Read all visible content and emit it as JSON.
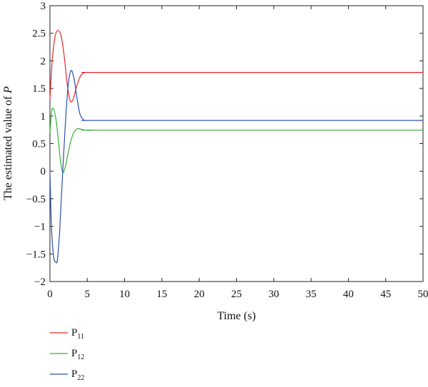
{
  "chart_data": {
    "type": "line",
    "title": "",
    "xlabel": "Time (s)",
    "ylabel_prefix": "The estimated value of ",
    "ylabel_var": "P",
    "xlim": [
      0,
      50
    ],
    "ylim": [
      -2,
      3
    ],
    "xticks": [
      0,
      5,
      10,
      15,
      20,
      25,
      30,
      35,
      40,
      45,
      50
    ],
    "yticks": [
      -2,
      -1.5,
      -1,
      -0.5,
      0,
      0.5,
      1,
      1.5,
      2,
      2.5,
      3
    ],
    "xtick_labels": [
      "0",
      "5",
      "10",
      "15",
      "20",
      "25",
      "30",
      "35",
      "40",
      "45",
      "50"
    ],
    "ytick_labels": [
      "−2",
      "−1.5",
      "−1",
      "−0.5",
      "0",
      "0.5",
      "1",
      "1.5",
      "2",
      "2.5",
      "3"
    ],
    "grid": false,
    "legend_position": "bottom-left",
    "series": [
      {
        "name": "P",
        "name_sub": "11",
        "color": "#e8262a",
        "x": [
          0,
          0.3,
          0.7,
          1.1,
          1.5,
          1.9,
          2.3,
          2.7,
          3.1,
          3.5,
          4.0,
          4.5,
          5,
          6,
          8,
          50
        ],
        "y": [
          1.3,
          2.0,
          2.45,
          2.55,
          2.45,
          2.1,
          1.6,
          1.28,
          1.3,
          1.5,
          1.7,
          1.78,
          1.79,
          1.79,
          1.79,
          1.79
        ]
      },
      {
        "name": "P",
        "name_sub": "12",
        "color": "#35b135",
        "x": [
          0,
          0.25,
          0.5,
          0.8,
          1.1,
          1.4,
          1.7,
          2.0,
          2.4,
          2.8,
          3.2,
          3.7,
          4.2,
          5,
          6,
          8,
          50
        ],
        "y": [
          0.7,
          1.1,
          1.12,
          0.95,
          0.6,
          0.2,
          -0.02,
          0.05,
          0.3,
          0.55,
          0.7,
          0.77,
          0.76,
          0.74,
          0.745,
          0.745,
          0.745
        ]
      },
      {
        "name": "P",
        "name_sub": "22",
        "color": "#2d4fb0",
        "x": [
          0,
          0.2,
          0.5,
          0.8,
          1.0,
          1.3,
          1.6,
          2.0,
          2.4,
          2.8,
          3.2,
          3.6,
          4.0,
          4.5,
          5,
          6,
          8,
          50
        ],
        "y": [
          0.0,
          -1.0,
          -1.55,
          -1.65,
          -1.6,
          -1.1,
          -0.3,
          0.7,
          1.5,
          1.82,
          1.7,
          1.35,
          1.05,
          0.93,
          0.92,
          0.92,
          0.92,
          0.92
        ]
      }
    ]
  }
}
